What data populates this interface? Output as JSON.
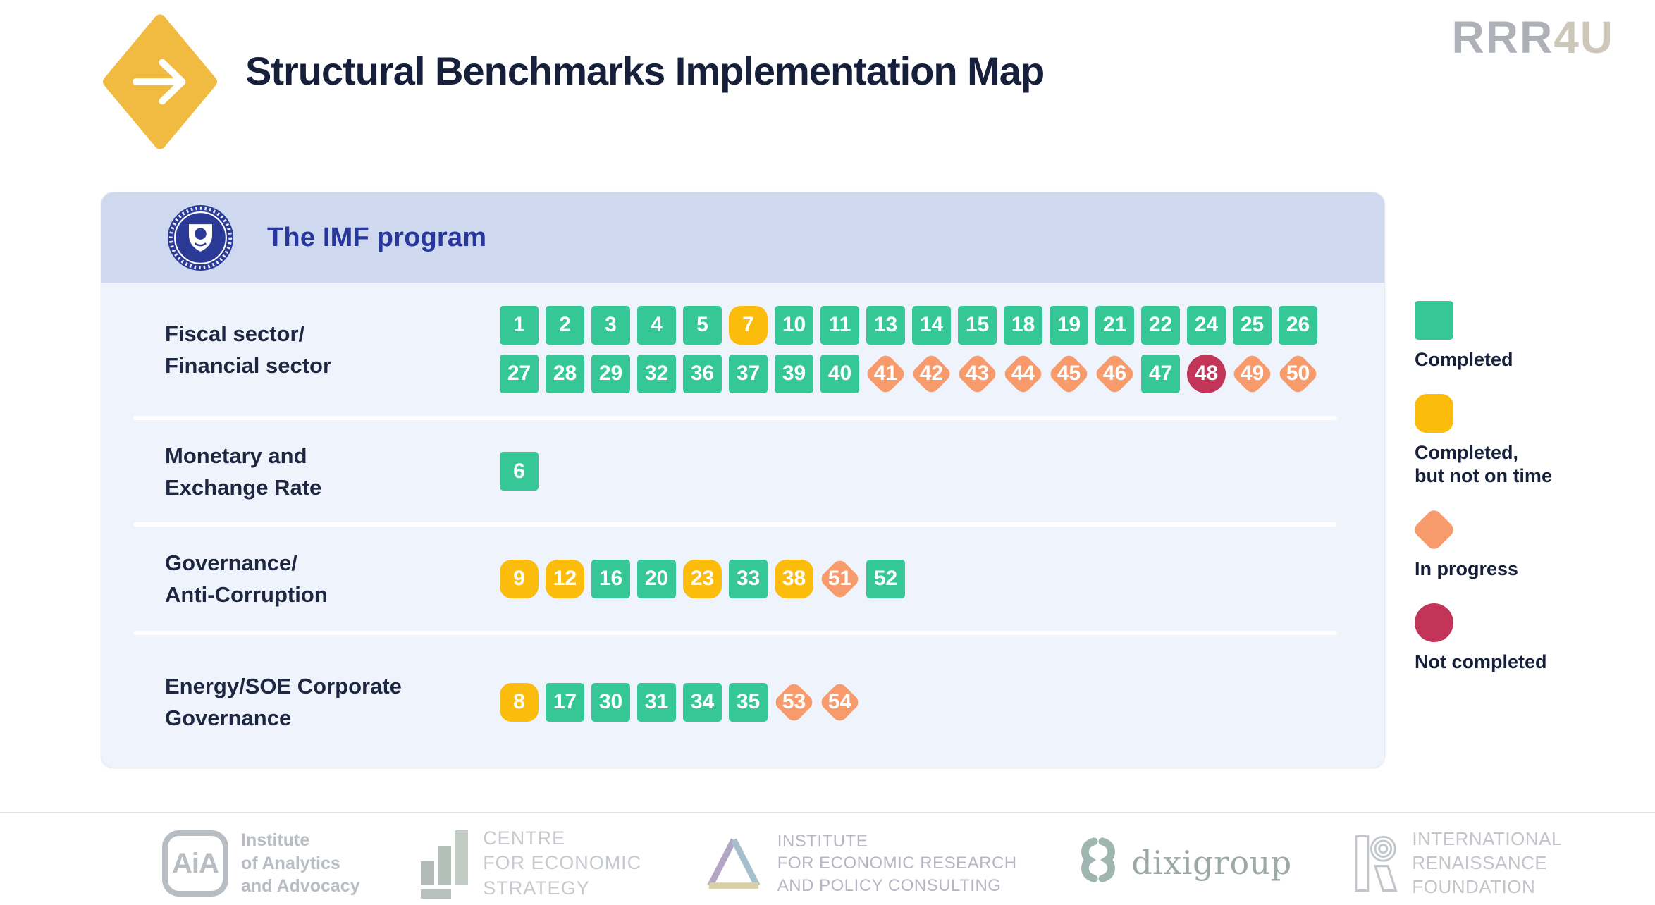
{
  "header": {
    "title": "Structural Benchmarks Implementation Map",
    "brand_gray": "RRR",
    "brand_tan": "4U"
  },
  "panel": {
    "program_title": "The IMF program"
  },
  "chart_data": {
    "type": "table",
    "title": "Structural Benchmarks Implementation Map",
    "program": "The IMF program",
    "status_colors": {
      "completed": "#35C795",
      "late": "#FBBC0B",
      "in_progress": "#F89B6C",
      "not_completed": "#C23458"
    },
    "legend_items": [
      {
        "status": "completed",
        "label_lines": [
          "Completed"
        ]
      },
      {
        "status": "late",
        "label_lines": [
          "Completed,",
          "but not on time"
        ]
      },
      {
        "status": "in_progress",
        "label_lines": [
          "In progress"
        ]
      },
      {
        "status": "not_completed",
        "label_lines": [
          "Not completed"
        ]
      }
    ],
    "categories": [
      {
        "label_lines": [
          "Fiscal sector/",
          "Financial sector"
        ],
        "rows": [
          [
            {
              "n": 1,
              "status": "completed"
            },
            {
              "n": 2,
              "status": "completed"
            },
            {
              "n": 3,
              "status": "completed"
            },
            {
              "n": 4,
              "status": "completed"
            },
            {
              "n": 5,
              "status": "completed"
            },
            {
              "n": 7,
              "status": "late"
            },
            {
              "n": 10,
              "status": "completed"
            },
            {
              "n": 11,
              "status": "completed"
            },
            {
              "n": 13,
              "status": "completed"
            },
            {
              "n": 14,
              "status": "completed"
            },
            {
              "n": 15,
              "status": "completed"
            },
            {
              "n": 18,
              "status": "completed"
            },
            {
              "n": 19,
              "status": "completed"
            },
            {
              "n": 21,
              "status": "completed"
            },
            {
              "n": 22,
              "status": "completed"
            },
            {
              "n": 24,
              "status": "completed"
            },
            {
              "n": 25,
              "status": "completed"
            },
            {
              "n": 26,
              "status": "completed"
            }
          ],
          [
            {
              "n": 27,
              "status": "completed"
            },
            {
              "n": 28,
              "status": "completed"
            },
            {
              "n": 29,
              "status": "completed"
            },
            {
              "n": 32,
              "status": "completed"
            },
            {
              "n": 36,
              "status": "completed"
            },
            {
              "n": 37,
              "status": "completed"
            },
            {
              "n": 39,
              "status": "completed"
            },
            {
              "n": 40,
              "status": "completed"
            },
            {
              "n": 41,
              "status": "in_progress"
            },
            {
              "n": 42,
              "status": "in_progress"
            },
            {
              "n": 43,
              "status": "in_progress"
            },
            {
              "n": 44,
              "status": "in_progress"
            },
            {
              "n": 45,
              "status": "in_progress"
            },
            {
              "n": 46,
              "status": "in_progress"
            },
            {
              "n": 47,
              "status": "completed"
            },
            {
              "n": 48,
              "status": "not_completed"
            },
            {
              "n": 49,
              "status": "in_progress"
            },
            {
              "n": 50,
              "status": "in_progress"
            }
          ]
        ]
      },
      {
        "label_lines": [
          "Monetary and",
          "Exchange Rate"
        ],
        "rows": [
          [
            {
              "n": 6,
              "status": "completed"
            }
          ]
        ]
      },
      {
        "label_lines": [
          "Governance/",
          "Anti-Corruption"
        ],
        "rows": [
          [
            {
              "n": 9,
              "status": "late"
            },
            {
              "n": 12,
              "status": "late"
            },
            {
              "n": 16,
              "status": "completed"
            },
            {
              "n": 20,
              "status": "completed"
            },
            {
              "n": 23,
              "status": "late"
            },
            {
              "n": 33,
              "status": "completed"
            },
            {
              "n": 38,
              "status": "late"
            },
            {
              "n": 51,
              "status": "in_progress"
            },
            {
              "n": 52,
              "status": "completed"
            }
          ]
        ]
      },
      {
        "label_lines": [
          "Energy/SOE Corporate",
          "Governance"
        ],
        "rows": [
          [
            {
              "n": 8,
              "status": "late"
            },
            {
              "n": 17,
              "status": "completed"
            },
            {
              "n": 30,
              "status": "completed"
            },
            {
              "n": 31,
              "status": "completed"
            },
            {
              "n": 34,
              "status": "completed"
            },
            {
              "n": 35,
              "status": "completed"
            },
            {
              "n": 53,
              "status": "in_progress"
            },
            {
              "n": 54,
              "status": "in_progress"
            }
          ]
        ]
      }
    ]
  },
  "footer": {
    "aia": {
      "icon_text": "AiA",
      "lines": [
        "Institute",
        "of Analytics",
        "and Advocacy"
      ]
    },
    "ces": {
      "lines": [
        "CENTRE",
        "FOR ECONOMIC",
        "STRATEGY"
      ]
    },
    "ier": {
      "lines": [
        "INSTITUTE",
        "FOR ECONOMIC RESEARCH",
        "AND POLICY CONSULTING"
      ]
    },
    "dixi": {
      "name": "dixigroup"
    },
    "irf": {
      "lines": [
        "INTERNATIONAL",
        "RENAISSANCE",
        "FOUNDATION"
      ]
    }
  }
}
